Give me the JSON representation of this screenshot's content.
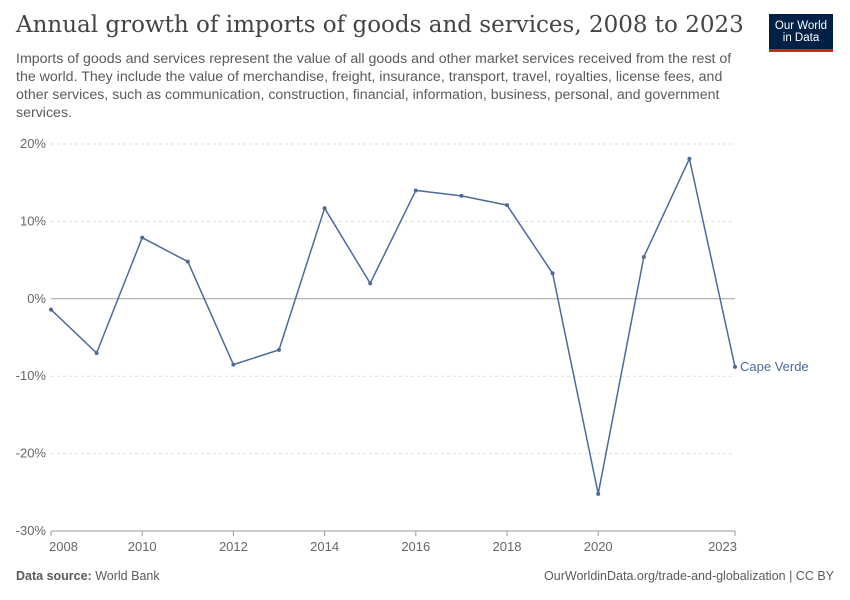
{
  "header": {
    "title": "Annual growth of imports of goods and services, 2008 to 2023",
    "subtitle": "Imports of goods and services represent the value of all goods and other market services received from the rest of the world. They include the value of merchandise, freight, insurance, transport, travel, royalties, license fees, and other services, such as communication, construction, financial, information, business, personal, and government services."
  },
  "logo": {
    "line1": "Our World",
    "line2": "in Data"
  },
  "footer": {
    "source_label": "Data source:",
    "source_value": "World Bank",
    "url_license": "OurWorldinData.org/trade-and-globalization | CC BY"
  },
  "colors": {
    "series": "#4c6a9c",
    "grid": "#dddddd",
    "zero_line": "#a1a1a1",
    "axis_text": "#666666",
    "logo_bg": "#002147",
    "logo_accent": "#ce261e"
  },
  "chart_data": {
    "type": "line",
    "title": "Annual growth of imports of goods and services, 2008 to 2023",
    "xlabel": "",
    "ylabel": "",
    "x": [
      2008,
      2009,
      2010,
      2011,
      2012,
      2013,
      2014,
      2015,
      2016,
      2017,
      2018,
      2019,
      2020,
      2021,
      2022,
      2023
    ],
    "series": [
      {
        "name": "Cape Verde",
        "values": [
          -1.4,
          -7.0,
          7.9,
          4.8,
          -8.5,
          -6.6,
          11.7,
          2.0,
          14.0,
          13.3,
          12.1,
          3.3,
          -25.2,
          5.4,
          18.1,
          -8.8
        ]
      }
    ],
    "xlim": [
      2008,
      2023
    ],
    "ylim": [
      -30,
      20
    ],
    "yticks": [
      -30,
      -20,
      -10,
      0,
      10,
      20
    ],
    "ytick_labels": [
      "-30%",
      "-20%",
      "-10%",
      "0%",
      "10%",
      "20%"
    ],
    "xticks": [
      2008,
      2010,
      2012,
      2014,
      2016,
      2018,
      2020,
      2023
    ],
    "xtick_labels": [
      "2008",
      "2010",
      "2012",
      "2014",
      "2016",
      "2018",
      "2020",
      "2023"
    ],
    "grid": true,
    "legend": "inline label at line end (right)"
  }
}
